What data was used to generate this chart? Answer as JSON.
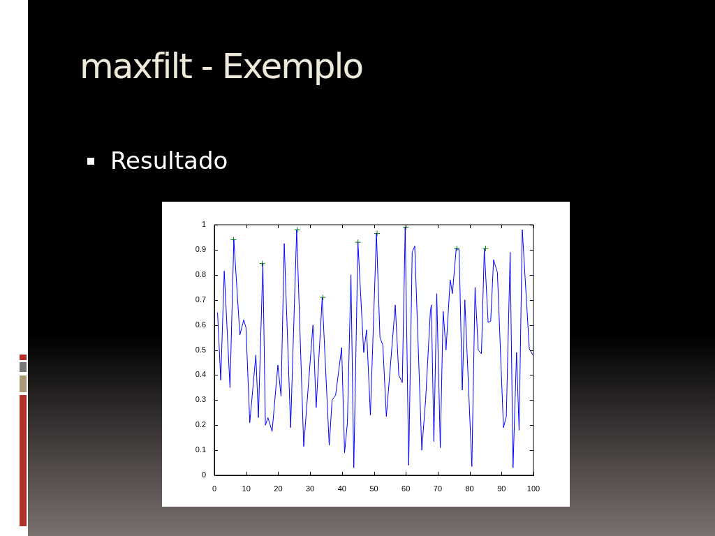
{
  "chart_data": {
    "type": "line",
    "title": "maxfilt - Exemplo",
    "subtitle": "Resultado",
    "xlim": [
      0,
      100
    ],
    "ylim": [
      0,
      1
    ],
    "xticks": [
      0,
      10,
      20,
      30,
      40,
      50,
      60,
      70,
      80,
      90,
      100
    ],
    "yticks": [
      0,
      0.1,
      0.2,
      0.3,
      0.4,
      0.5,
      0.6,
      0.7,
      0.8,
      0.9,
      1
    ],
    "grid": false,
    "legend": false,
    "series": [
      {
        "type": "line",
        "marker": "none",
        "color": "#0000ff",
        "x": [
          1,
          2,
          3.1,
          4.9,
          6.1,
          8,
          9.2,
          9.9,
          11.1,
          13,
          13.8,
          15.2,
          16,
          16.8,
          18.1,
          19.9,
          20.9,
          21.9,
          23.9,
          25.8,
          28,
          30.9,
          31.9,
          33.8,
          36,
          36.9,
          38,
          39.9,
          40.8,
          41.7,
          42.8,
          43.7,
          45,
          46.8,
          47.7,
          48.9,
          50.8,
          51.9,
          52.8,
          53.9,
          56.7,
          57.8,
          58.9,
          59.8,
          60.9,
          62,
          62.8,
          65,
          66.2,
          67.7,
          68,
          68.8,
          69.7,
          70.8,
          71.7,
          72.6,
          73.9,
          74.6,
          75.8,
          76.7,
          77.7,
          78.5,
          80.7,
          81.7,
          82.7,
          83.7,
          84.6,
          85.8,
          86.6,
          87.5,
          88.7,
          90.6,
          91.5,
          92.7,
          93.6,
          94.7,
          95.5,
          96.5,
          98.7,
          99.8
        ],
        "values": [
          0.65,
          0.38,
          0.815,
          0.35,
          0.94,
          0.56,
          0.62,
          0.59,
          0.21,
          0.48,
          0.23,
          0.845,
          0.2,
          0.23,
          0.175,
          0.44,
          0.315,
          0.925,
          0.19,
          0.98,
          0.115,
          0.6,
          0.27,
          0.71,
          0.12,
          0.3,
          0.32,
          0.51,
          0.09,
          0.21,
          0.8,
          0.03,
          0.93,
          0.49,
          0.58,
          0.24,
          0.965,
          0.55,
          0.52,
          0.235,
          0.68,
          0.4,
          0.37,
          0.99,
          0.04,
          0.89,
          0.915,
          0.1,
          0.3,
          0.655,
          0.68,
          0.135,
          0.725,
          0.11,
          0.655,
          0.5,
          0.78,
          0.725,
          0.905,
          0.9,
          0.34,
          0.7,
          0.035,
          0.75,
          0.5,
          0.485,
          0.905,
          0.61,
          0.615,
          0.86,
          0.81,
          0.19,
          0.235,
          0.89,
          0.03,
          0.49,
          0.18,
          0.98,
          0.505,
          0.48
        ]
      },
      {
        "type": "scatter",
        "marker": "cross",
        "color": "#008000",
        "x": [
          6,
          15,
          26,
          34,
          45,
          51,
          60,
          76,
          85
        ],
        "values": [
          0.94,
          0.845,
          0.98,
          0.71,
          0.93,
          0.965,
          0.99,
          0.905,
          0.905
        ]
      }
    ]
  }
}
